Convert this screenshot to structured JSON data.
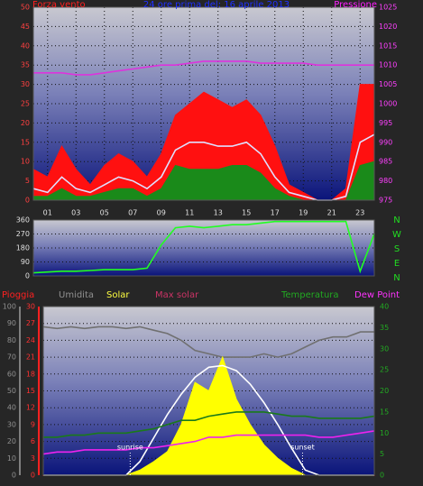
{
  "chart_data": [
    {
      "type": "line",
      "title": "24 ore prima del: 16 aprile 2013",
      "y_label": "Forza vento",
      "y2_label": "Pressione",
      "x": [
        0,
        1,
        2,
        3,
        4,
        5,
        6,
        7,
        8,
        9,
        10,
        11,
        12,
        13,
        14,
        15,
        16,
        17,
        18,
        19,
        20,
        21,
        22,
        23,
        24
      ],
      "xlim": [
        0,
        24
      ],
      "xticks": [
        {
          "value": 1,
          "label": "01"
        },
        {
          "value": 3,
          "label": "03"
        },
        {
          "value": 5,
          "label": "05"
        },
        {
          "value": 7,
          "label": "07"
        },
        {
          "value": 9,
          "label": "09"
        },
        11,
        13,
        15,
        17,
        19,
        21,
        23
      ],
      "ylim": [
        0,
        50
      ],
      "yticks": [
        0,
        5,
        10,
        15,
        20,
        25,
        30,
        35,
        40,
        45,
        50
      ],
      "y2lim": [
        975,
        1025
      ],
      "y2ticks": [
        975,
        980,
        985,
        990,
        995,
        1000,
        1005,
        1010,
        1015,
        1020,
        1025
      ],
      "grid": true,
      "label_color": "#ff2020",
      "title_color": "#2030ff",
      "y2_label_color": "#ff20ff",
      "series": [
        {
          "color": "#ff1010",
          "style": "area",
          "values": [
            8,
            6,
            14,
            8,
            4,
            9,
            12,
            10,
            6,
            12,
            22,
            25,
            28,
            26,
            24,
            26,
            22,
            14,
            4,
            2,
            0,
            0,
            3,
            30,
            30
          ]
        },
        {
          "color": "#e0e0ff",
          "style": "line",
          "values": [
            3,
            2,
            6,
            3,
            2,
            4,
            6,
            5,
            3,
            6,
            13,
            15,
            15,
            14,
            14,
            15,
            12,
            6,
            2,
            1,
            0,
            0,
            1,
            15,
            17
          ]
        },
        {
          "color": "#1a8a1a",
          "style": "area",
          "values": [
            1,
            1,
            3,
            1,
            1,
            2,
            3,
            3,
            1,
            3,
            9,
            8,
            8,
            8,
            9,
            9,
            7,
            3,
            1,
            0,
            0,
            0,
            0,
            9,
            10
          ]
        },
        {
          "color": "#dd33dd",
          "style": "line",
          "axis": "y2",
          "values": [
            1008,
            1008,
            1008,
            1007.5,
            1007.5,
            1008,
            1008.5,
            1009,
            1009.5,
            1010,
            1010,
            1010.5,
            1011,
            1011,
            1011,
            1011,
            1010.5,
            1010.5,
            1010.5,
            1010.5,
            1010,
            1010,
            1010,
            1010,
            1010
          ]
        }
      ]
    },
    {
      "type": "line",
      "x": [
        0,
        1,
        2,
        3,
        4,
        5,
        6,
        7,
        8,
        9,
        10,
        11,
        12,
        13,
        14,
        15,
        16,
        17,
        18,
        19,
        20,
        21,
        22,
        23,
        24
      ],
      "xlim": [
        0,
        24
      ],
      "ylim": [
        0,
        360
      ],
      "yticks": [
        0,
        90,
        180,
        270,
        360
      ],
      "grid": true,
      "direction_labels": [
        "N",
        "W",
        "S",
        "E",
        "N"
      ],
      "series": [
        {
          "color": "#22ff22",
          "style": "line",
          "values": [
            20,
            25,
            30,
            30,
            35,
            40,
            40,
            40,
            50,
            200,
            310,
            320,
            310,
            320,
            330,
            330,
            340,
            350,
            350,
            350,
            350,
            350,
            350,
            30,
            270
          ]
        }
      ]
    },
    {
      "type": "line",
      "x": [
        0,
        1,
        2,
        3,
        4,
        5,
        6,
        7,
        8,
        9,
        10,
        11,
        12,
        13,
        14,
        15,
        16,
        17,
        18,
        19,
        20,
        21,
        22,
        23,
        24
      ],
      "xlim": [
        0,
        24
      ],
      "ylim": [
        0,
        100
      ],
      "yticks": [
        0,
        10,
        20,
        30,
        40,
        50,
        60,
        70,
        80,
        90,
        100
      ],
      "y2lim": [
        0,
        40
      ],
      "y2ticks": [
        0,
        5,
        10,
        15,
        20,
        25,
        30,
        35,
        40
      ],
      "y3lim": [
        0,
        30
      ],
      "y3ticks": [
        0,
        3,
        6,
        9,
        12,
        15,
        18,
        21,
        24,
        27,
        30
      ],
      "grid": true,
      "annotations": [
        {
          "x": 6.3,
          "text": "sunrise"
        },
        {
          "x": 18.8,
          "text": "sunset"
        }
      ],
      "series": [
        {
          "name": "Pioggia",
          "color": "#ff1010",
          "label_color": "#ff2020",
          "style": "bar",
          "axis": "y3",
          "values": [
            0,
            0,
            0,
            0,
            0,
            0,
            0,
            0,
            0,
            0,
            0,
            0,
            0,
            0,
            0,
            0,
            0,
            0,
            0,
            0,
            0,
            0,
            0,
            0,
            0
          ]
        },
        {
          "name": "Umidita",
          "color": "#707070",
          "label_color": "#909090",
          "style": "line",
          "values": [
            88,
            87,
            88,
            87,
            88,
            88,
            87,
            88,
            86,
            84,
            80,
            74,
            72,
            70,
            70,
            70,
            72,
            70,
            72,
            76,
            80,
            82,
            82,
            85,
            85
          ]
        },
        {
          "name": "Solar",
          "color": "#ffff00",
          "label_color": "#ffff40",
          "style": "area",
          "values": [
            0,
            0,
            0,
            0,
            0,
            0,
            0,
            3,
            8,
            14,
            30,
            55,
            50,
            70,
            45,
            30,
            18,
            10,
            4,
            0,
            0,
            0,
            0,
            0,
            0
          ]
        },
        {
          "name": "Max solar",
          "color": "#ffffff",
          "label_color": "#cc3366",
          "style": "line",
          "values": [
            0,
            0,
            0,
            0,
            0,
            0,
            0,
            8,
            22,
            36,
            48,
            58,
            64,
            65,
            62,
            54,
            43,
            30,
            16,
            3,
            0,
            0,
            0,
            0,
            0
          ]
        },
        {
          "name": "Temperatura",
          "color": "#1a7a1a",
          "label_color": "#22aa22",
          "style": "line",
          "axis": "y2",
          "values": [
            9,
            9,
            9.5,
            9.5,
            10,
            10,
            10,
            10.5,
            11,
            12,
            13,
            13,
            14,
            14.5,
            15,
            15,
            15,
            14.5,
            14,
            14,
            13.5,
            13.5,
            13.5,
            13.5,
            14
          ]
        },
        {
          "name": "Dew Point",
          "color": "#ee22ee",
          "label_color": "#ff33ff",
          "style": "line",
          "axis": "y2",
          "values": [
            5,
            5.5,
            5.5,
            6,
            6,
            6,
            6,
            6.5,
            6.5,
            7,
            7.5,
            8,
            9,
            9,
            9.5,
            9.5,
            9.5,
            9.5,
            9.5,
            9.5,
            9,
            9,
            9.5,
            10,
            10.5
          ]
        }
      ]
    }
  ]
}
